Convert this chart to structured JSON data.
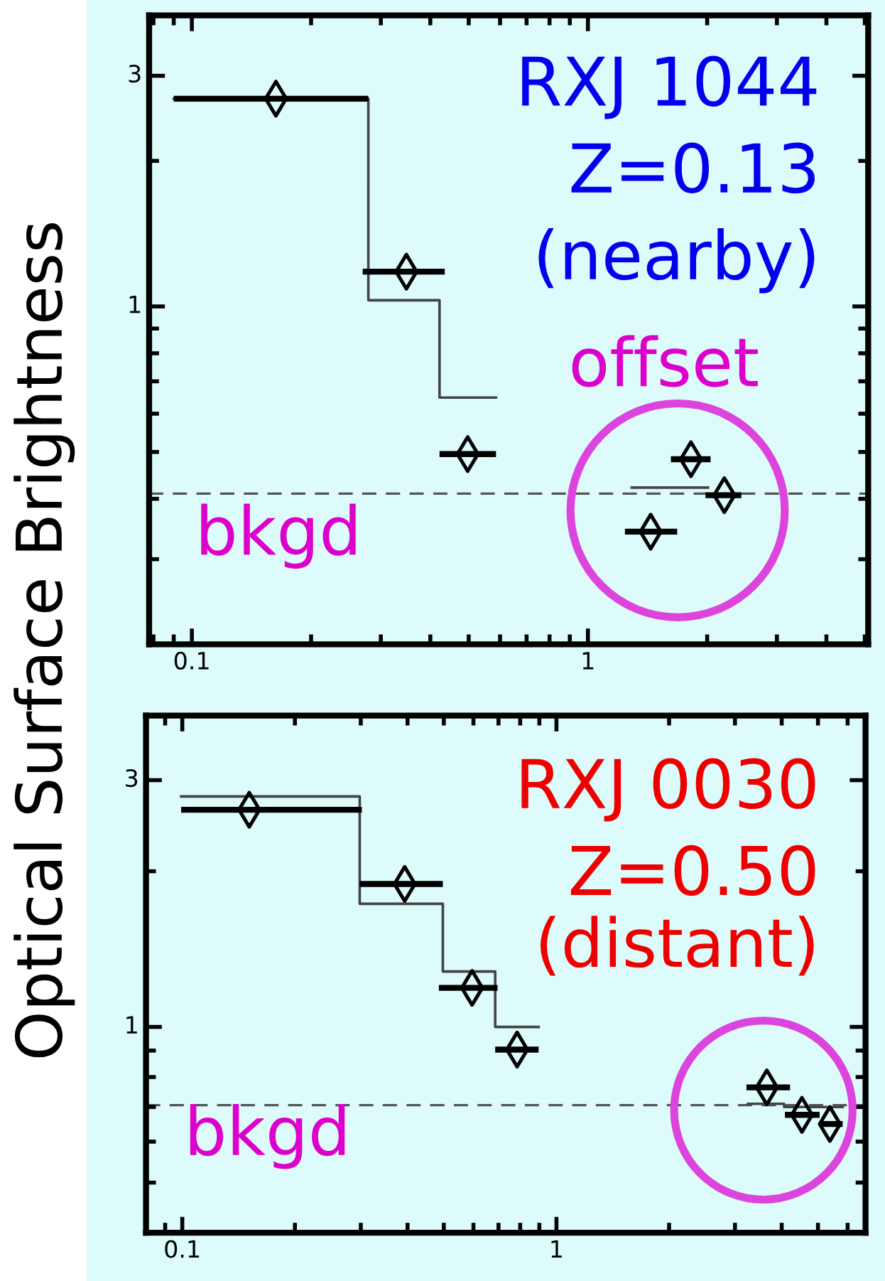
{
  "chart_data": [
    {
      "type": "scatter",
      "ylabel": "Optical Surface Brightness",
      "log": "xy",
      "xlim": [
        0.078,
        5.1
      ],
      "ylim": [
        0.2,
        4
      ],
      "xticks": [
        0.1,
        1
      ],
      "yticks": [
        1,
        3
      ],
      "grid": false,
      "legend": false,
      "annotations": [
        "RXJ 1044",
        "Z=0.13",
        "(nearby)",
        "offset"
      ],
      "ref_lines": [
        {
          "axis": "y",
          "value": 0.41,
          "label": "bkgd",
          "color": "#555555",
          "line_style": "dashed"
        }
      ],
      "series": [
        {
          "color": "#000000",
          "marker": "diamond",
          "x": [
            0.163,
            0.348,
            0.497,
            1.44,
            1.82,
            2.21
          ],
          "values": [
            2.69,
            1.18,
            0.495,
            0.342,
            0.483,
            0.407
          ],
          "xerrors": [
            [
              0.09,
              0.279
            ],
            [
              0.27,
              0.435
            ],
            [
              0.422,
              0.586
            ],
            [
              1.24,
              1.68
            ],
            [
              1.62,
              2.04
            ],
            [
              1.98,
              2.44
            ]
          ]
        },
        {
          "type": "line",
          "color": "#444444",
          "line_style": "solid",
          "marker": "none",
          "x": [
            0.09,
            0.279,
            0.279,
            0.422,
            0.422,
            0.586,
            1.0,
            1.29,
            2.01
          ],
          "values": [
            2.69,
            2.69,
            1.03,
            1.03,
            0.648,
            0.648,
            null,
            0.422,
            0.422
          ]
        }
      ]
    },
    {
      "type": "scatter",
      "log": "xy",
      "xlim": [
        0.08,
        6.7
      ],
      "ylim": [
        0.4,
        4
      ],
      "xticks": [
        0.1,
        1
      ],
      "yticks": [
        1,
        3
      ],
      "grid": false,
      "legend": false,
      "annotations": [
        "RXJ 0030",
        "Z=0.50",
        "(distant)"
      ],
      "ref_lines": [
        {
          "axis": "y",
          "value": 0.706,
          "label": "bkgd",
          "color": "#555555",
          "line_style": "dashed"
        }
      ],
      "series": [
        {
          "color": "#000000",
          "marker": "diamond",
          "x": [
            0.151,
            0.393,
            0.595,
            0.785,
            3.65,
            4.53,
            5.38
          ],
          "values": [
            2.63,
            1.89,
            1.19,
            0.904,
            0.764,
            0.676,
            0.649
          ],
          "xerrors": [
            [
              0.0993,
              0.302
            ],
            [
              0.298,
              0.497
            ],
            [
              0.485,
              0.696
            ],
            [
              0.686,
              0.896
            ],
            [
              3.22,
              4.21
            ],
            [
              4.08,
              5.05
            ],
            [
              5.05,
              5.82
            ]
          ]
        },
        {
          "type": "line",
          "color": "#444444",
          "line_style": "solid",
          "marker": "none",
          "x": [
            0.0993,
            0.298,
            0.298,
            0.497,
            0.497,
            0.686,
            0.686,
            0.896,
            2.0,
            3.25,
            4.06,
            4.06,
            5.82
          ],
          "values": [
            2.79,
            2.79,
            1.73,
            1.73,
            1.28,
            1.28,
            1.0,
            1.0,
            null,
            0.71,
            0.71,
            0.7,
            0.7
          ]
        }
      ]
    }
  ]
}
